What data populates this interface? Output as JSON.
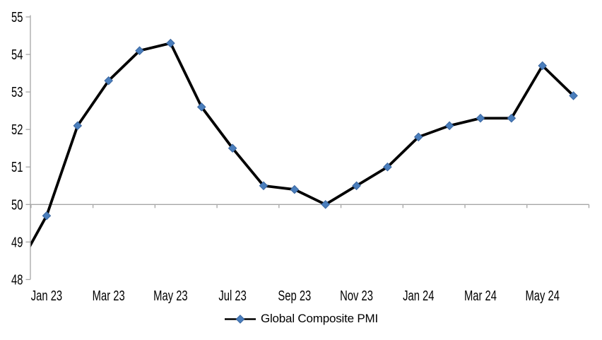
{
  "chart_data": {
    "type": "line",
    "title": "",
    "x_categories": [
      "Dec 22",
      "Jan 23",
      "Feb 23",
      "Mar 23",
      "Apr 23",
      "May 23",
      "Jun 23",
      "Jul 23",
      "Aug 23",
      "Sep 23",
      "Oct 23",
      "Nov 23",
      "Dec 23",
      "Jan 24",
      "Feb 24",
      "Mar 24",
      "Apr 24",
      "May 24",
      "Jun 24"
    ],
    "series": [
      {
        "name": "Global Composite PMI",
        "values": [
          48.2,
          49.7,
          52.1,
          53.3,
          54.1,
          54.3,
          52.6,
          51.5,
          50.5,
          50.4,
          50.0,
          50.5,
          51.0,
          51.8,
          52.1,
          52.3,
          52.3,
          53.7,
          52.9
        ]
      }
    ],
    "first_point_clipped_outside_plot": true,
    "ylim": [
      48,
      55
    ],
    "yticks": [
      48,
      49,
      50,
      51,
      52,
      53,
      54,
      55
    ],
    "x_tick_labels": [
      "Jan 23",
      "Mar 23",
      "May 23",
      "Jul 23",
      "Sep 23",
      "Nov 23",
      "Jan 24",
      "Mar 24",
      "May 24"
    ],
    "category_axis_crosses_at": 50,
    "grid": false,
    "marker": "diamond",
    "legend_position": "bottom-center",
    "colors": {
      "line": "#000000",
      "marker_fill": "#4a7ebc",
      "marker_stroke": "#3a66a0",
      "axis": "#a6a6a6",
      "text": "#000000"
    }
  }
}
